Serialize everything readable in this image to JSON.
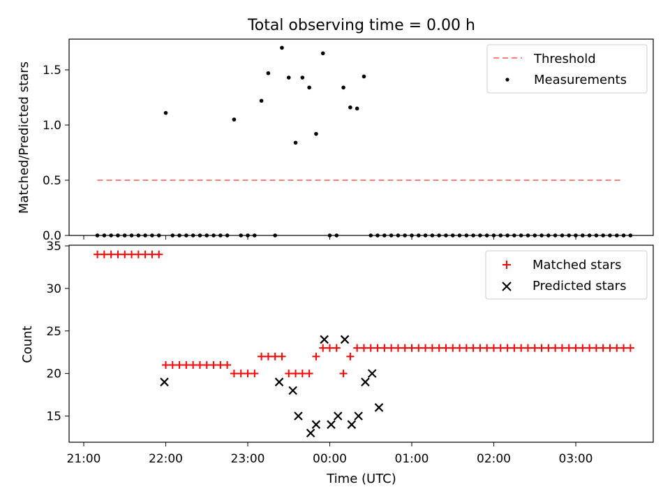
{
  "chart_data": [
    {
      "type": "scatter",
      "title": "Total observing time = 0.00 h",
      "xlabel": "",
      "ylabel": "Matched/Predicted stars",
      "ylim": [
        0,
        1.78
      ],
      "yticks": [
        "0.0",
        "0.5",
        "1.0",
        "1.5"
      ],
      "grid": false,
      "legend": {
        "placement": "top-right",
        "entries": [
          "Threshold",
          "Measurements"
        ]
      },
      "colors": {
        "threshold": "#ff7f7f",
        "measurements": "#000000"
      },
      "threshold": {
        "name": "Threshold",
        "y": 0.5,
        "x_start": "21:10",
        "x_end": "03:35"
      },
      "series": [
        {
          "name": "Measurements",
          "x": [
            "21:10",
            "21:15",
            "21:20",
            "21:25",
            "21:30",
            "21:35",
            "21:40",
            "21:45",
            "21:50",
            "21:55",
            "22:00",
            "22:05",
            "22:10",
            "22:15",
            "22:20",
            "22:25",
            "22:30",
            "22:35",
            "22:40",
            "22:45",
            "22:50",
            "22:55",
            "23:00",
            "23:05",
            "23:10",
            "23:15",
            "23:20",
            "23:25",
            "23:30",
            "23:35",
            "23:40",
            "23:45",
            "23:50",
            "23:55",
            "00:00",
            "00:05",
            "00:10",
            "00:15",
            "00:20",
            "00:25",
            "00:30",
            "00:35",
            "00:40",
            "00:45",
            "00:50",
            "00:55",
            "01:00",
            "01:05",
            "01:10",
            "01:15",
            "01:20",
            "01:25",
            "01:30",
            "01:35",
            "01:40",
            "01:45",
            "01:50",
            "01:55",
            "02:00",
            "02:05",
            "02:10",
            "02:15",
            "02:20",
            "02:25",
            "02:30",
            "02:35",
            "02:40",
            "02:45",
            "02:50",
            "02:55",
            "03:00",
            "03:05",
            "03:10",
            "03:15",
            "03:20",
            "03:25",
            "03:30",
            "03:35",
            "03:40"
          ],
          "y": [
            0,
            0,
            0,
            0,
            0,
            0,
            0,
            0,
            0,
            0,
            1.11,
            0,
            0,
            0,
            0,
            0,
            0,
            0,
            0,
            0,
            1.05,
            0,
            0,
            0,
            1.22,
            1.47,
            0,
            1.7,
            1.43,
            0.84,
            1.43,
            1.34,
            0.92,
            1.65,
            0,
            0,
            1.34,
            1.16,
            1.15,
            1.44,
            0,
            0,
            0,
            0,
            0,
            0,
            0,
            0,
            0,
            0,
            0,
            0,
            0,
            0,
            0,
            0,
            0,
            0,
            0,
            0,
            0,
            0,
            0,
            0,
            0,
            0,
            0,
            0,
            0,
            0,
            0,
            0,
            0,
            0,
            0,
            0,
            0,
            0,
            0
          ]
        }
      ]
    },
    {
      "type": "scatter",
      "title": "",
      "xlabel": "Time (UTC)",
      "ylabel": "Count",
      "ylim": [
        12,
        35
      ],
      "yticks": [
        "15",
        "20",
        "25",
        "30",
        "35"
      ],
      "xticks": [
        "21:00",
        "22:00",
        "23:00",
        "00:00",
        "01:00",
        "02:00",
        "03:00"
      ],
      "grid": false,
      "legend": {
        "placement": "top-right",
        "entries": [
          "Matched stars",
          "Predicted stars"
        ]
      },
      "colors": {
        "matched": "#ff0000",
        "predicted": "#000000"
      },
      "series": [
        {
          "name": "Matched stars",
          "x": [
            "21:10",
            "21:15",
            "21:20",
            "21:25",
            "21:30",
            "21:35",
            "21:40",
            "21:45",
            "21:50",
            "21:55",
            "22:00",
            "22:05",
            "22:10",
            "22:15",
            "22:20",
            "22:25",
            "22:30",
            "22:35",
            "22:40",
            "22:45",
            "22:50",
            "22:55",
            "23:00",
            "23:05",
            "23:10",
            "23:15",
            "23:20",
            "23:25",
            "23:30",
            "23:35",
            "23:40",
            "23:45",
            "23:50",
            "23:55",
            "00:00",
            "00:05",
            "00:10",
            "00:15",
            "00:20",
            "00:25",
            "00:30",
            "00:35",
            "00:40",
            "00:45",
            "00:50",
            "00:55",
            "01:00",
            "01:05",
            "01:10",
            "01:15",
            "01:20",
            "01:25",
            "01:30",
            "01:35",
            "01:40",
            "01:45",
            "01:50",
            "01:55",
            "02:00",
            "02:05",
            "02:10",
            "02:15",
            "02:20",
            "02:25",
            "02:30",
            "02:35",
            "02:40",
            "02:45",
            "02:50",
            "02:55",
            "03:00",
            "03:05",
            "03:10",
            "03:15",
            "03:20",
            "03:25",
            "03:30",
            "03:35",
            "03:40"
          ],
          "y": [
            34,
            34,
            34,
            34,
            34,
            34,
            34,
            34,
            34,
            34,
            21,
            21,
            21,
            21,
            21,
            21,
            21,
            21,
            21,
            21,
            20,
            20,
            20,
            20,
            22,
            22,
            22,
            22,
            20,
            20,
            20,
            20,
            22,
            23,
            23,
            23,
            20,
            22,
            23,
            23,
            23,
            23,
            23,
            23,
            23,
            23,
            23,
            23,
            23,
            23,
            23,
            23,
            23,
            23,
            23,
            23,
            23,
            23,
            23,
            23,
            23,
            23,
            23,
            23,
            23,
            23,
            23,
            23,
            23,
            23,
            23,
            23,
            23,
            23,
            23,
            23,
            23,
            23,
            23
          ]
        },
        {
          "name": "Predicted stars",
          "x": [
            "21:59",
            "23:23",
            "23:33",
            "23:37",
            "23:46",
            "23:50",
            "23:56",
            "24:01",
            "24:06",
            "24:11",
            "24:16",
            "24:21",
            "24:26",
            "24:31",
            "24:36"
          ],
          "y": [
            19,
            19,
            18,
            15,
            13,
            14,
            24,
            14,
            15,
            24,
            14,
            15,
            19,
            20,
            16
          ]
        }
      ]
    }
  ]
}
